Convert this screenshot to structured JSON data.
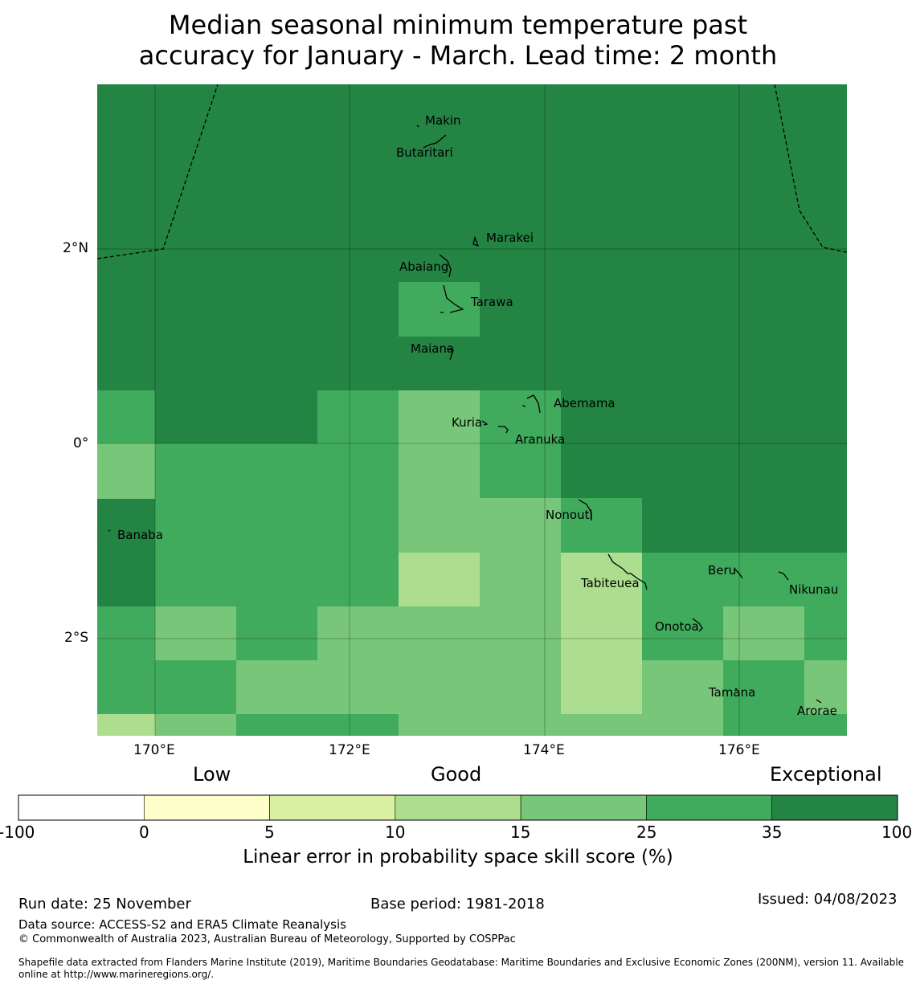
{
  "title": {
    "line1": "Median seasonal minimum temperature past",
    "line2": "accuracy for January - March. Lead time: 2 month"
  },
  "map": {
    "lat_ticks": [
      "2°N",
      "0°",
      "2°S"
    ],
    "lon_ticks": [
      "170°E",
      "172°E",
      "174°E",
      "176°E"
    ],
    "places": [
      "Makin",
      "Butaritari",
      "Marakei",
      "Abaiang",
      "Tarawa",
      "Maiana",
      "Abemama",
      "Kuria",
      "Aranuka",
      "Nonouti",
      "Banaba",
      "Tabiteuea",
      "Beru",
      "Nikunau",
      "Onotoa",
      "Tamana",
      "Arorae"
    ]
  },
  "legend": {
    "categories": [
      "Low",
      "Good",
      "Exceptional"
    ],
    "ticks": [
      "-100",
      "0",
      "5",
      "10",
      "15",
      "25",
      "35",
      "100"
    ],
    "colors": [
      "#ffffff",
      "#ffffcc",
      "#d9f0a3",
      "#addd8e",
      "#78c679",
      "#41ab5d",
      "#238443"
    ],
    "label": "Linear error in probability space skill score (%)"
  },
  "footer": {
    "run_date": "Run date: 25 November",
    "base_period": "Base period: 1981-2018",
    "issued": "Issued: 04/08/2023",
    "data_source": "Data source: ACCESS-S2 and ERA5 Climate Reanalysis",
    "copyright": "© Commonwealth of Australia 2023, Australian Bureau of Meteorology, Supported by COSPPac",
    "shapefile_line1": "Shapefile data extracted from Flanders Marine Institute (2019), Maritime Boundaries Geodatabase: Maritime Boundaries and Exclusive Economic Zones (200NM), version 11. Available",
    "shapefile_line2": "online at http://www.marineregions.org/."
  }
}
